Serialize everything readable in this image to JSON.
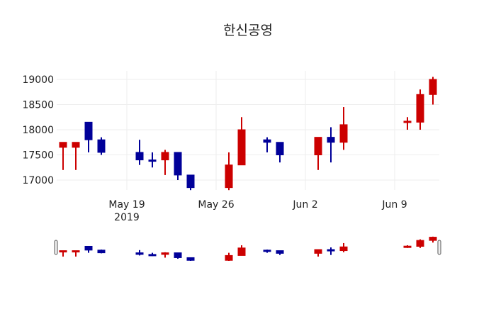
{
  "title": "한신공영",
  "colors": {
    "increasing": "#cc0000",
    "decreasing": "#000099",
    "grid": "#eeeeee",
    "text": "#222222"
  },
  "chart_data": {
    "type": "candlestick",
    "title": "한신공영",
    "xlabel": "",
    "ylabel": "",
    "ylim": [
      16800,
      19170
    ],
    "yticks": [
      17000,
      17500,
      18000,
      18500,
      19000
    ],
    "xticks": [
      {
        "label": "May 19",
        "sublabel": "2019",
        "date": "2019-05-19"
      },
      {
        "label": "May 26",
        "sublabel": "",
        "date": "2019-05-26"
      },
      {
        "label": "Jun 2",
        "sublabel": "",
        "date": "2019-06-02"
      },
      {
        "label": "Jun 9",
        "sublabel": "",
        "date": "2019-06-09"
      }
    ],
    "grid": true,
    "rangeslider": true,
    "x": [
      "2019-05-14",
      "2019-05-15",
      "2019-05-16",
      "2019-05-17",
      "2019-05-20",
      "2019-05-21",
      "2019-05-22",
      "2019-05-23",
      "2019-05-24",
      "2019-05-27",
      "2019-05-28",
      "2019-05-30",
      "2019-05-31",
      "2019-06-03",
      "2019-06-04",
      "2019-06-05",
      "2019-06-10",
      "2019-06-11",
      "2019-06-12"
    ],
    "open": [
      17650,
      17650,
      18150,
      17800,
      17550,
      17400,
      17400,
      17550,
      17100,
      16850,
      17300,
      17800,
      17750,
      17500,
      17850,
      17750,
      18150,
      18150,
      18700
    ],
    "high": [
      17750,
      17750,
      18150,
      17850,
      17800,
      17550,
      17600,
      17550,
      17100,
      17550,
      18250,
      17850,
      17750,
      17850,
      18050,
      18450,
      18250,
      18800,
      19050
    ],
    "low": [
      17200,
      17200,
      17550,
      17500,
      17300,
      17250,
      17100,
      17000,
      16800,
      16800,
      17300,
      17550,
      17350,
      17200,
      17350,
      17600,
      18000,
      18000,
      18500
    ],
    "close": [
      17750,
      17750,
      17800,
      17550,
      17400,
      17380,
      17550,
      17100,
      16850,
      17300,
      18000,
      17750,
      17500,
      17850,
      17750,
      18100,
      18170,
      18700,
      19000
    ]
  }
}
